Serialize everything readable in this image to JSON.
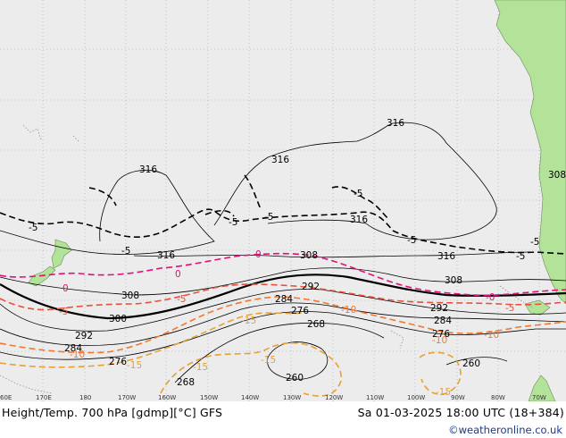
{
  "title": "Height/Temp. 700 hPa [gdmp][°C] GFS",
  "valid_time": "Sa 01-03-2025 18:00 UTC (18+384)",
  "credit": "©weatheronline.co.uk",
  "lon_labels": [
    "60E",
    "170E",
    "180",
    "170W",
    "160W",
    "150W",
    "140W",
    "130W",
    "120W",
    "110W",
    "100W",
    "90W",
    "80W",
    "70W"
  ],
  "height_labels": [
    "316",
    "316",
    "316",
    "316",
    "316",
    "316",
    "308",
    "308",
    "308",
    "308",
    "300",
    "292",
    "292",
    "292",
    "284",
    "284",
    "284",
    "276",
    "276",
    "276",
    "268",
    "268",
    "260",
    "260"
  ],
  "temp_labels": [
    "-5",
    "-5",
    "-5",
    "-5",
    "-5",
    "-5",
    "-5",
    "-5",
    "0",
    "0",
    "0",
    "-0",
    "-5",
    "-10",
    "-10",
    "-15",
    "-15",
    "-15",
    "-15",
    "-15",
    "-5",
    "-10",
    "-10",
    "-5"
  ],
  "colors": {
    "ocean": "#ececec",
    "land": "#b3e398",
    "height_contour": "#000000",
    "temp_zero": "#e0107a",
    "temp_minus5": "#e8503a",
    "temp_minus10": "#f07830",
    "temp_minus15": "#e8a030",
    "grid": "#9aa4b0"
  }
}
